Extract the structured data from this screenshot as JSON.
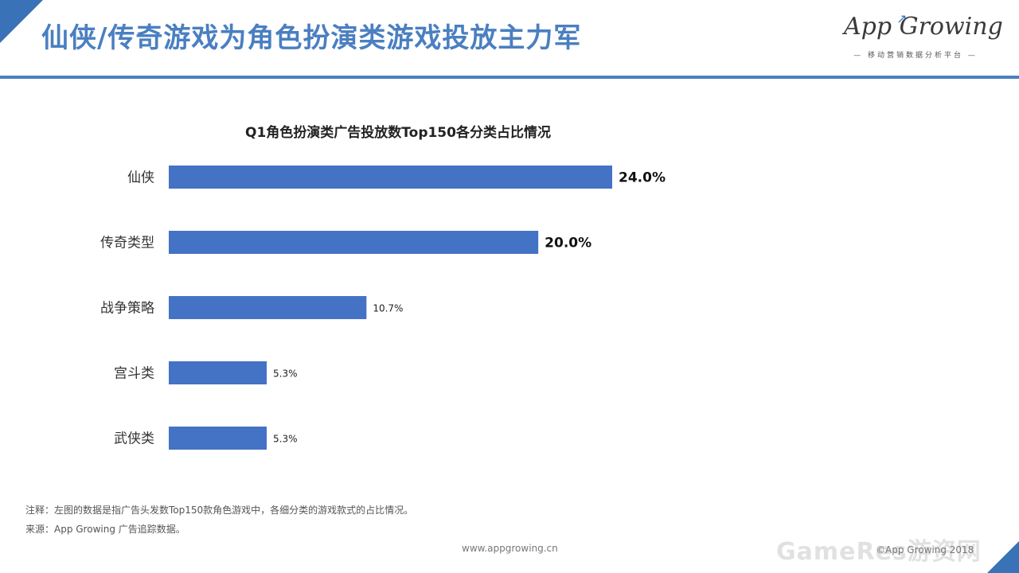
{
  "header": {
    "title": "仙侠/传奇游戏为角色扮演类游戏投放主力军",
    "logo_text": "App Growing",
    "logo_subtitle": "— 移动营销数据分析平台 —"
  },
  "chart_data": {
    "type": "bar",
    "orientation": "horizontal",
    "title": "Q1角色扮演类广告投放数Top150各分类占比情况",
    "categories": [
      "仙侠",
      "传奇类型",
      "战争策略",
      "宫斗类",
      "武侠类"
    ],
    "values": [
      24.0,
      20.0,
      10.7,
      5.3,
      5.3
    ],
    "value_labels": [
      "24.0%",
      "20.0%",
      "10.7%",
      "5.3%",
      "5.3%"
    ],
    "xlabel": "",
    "ylabel": "",
    "xlim": [
      0,
      24.0
    ],
    "grid": false,
    "legend": "none",
    "bar_color": "#4472c4"
  },
  "footer": {
    "note": "注释：左图的数据是指广告头发数Top150款角色游戏中，各细分类的游戏款式的占比情况。",
    "source": "来源：App  Growing  广告追踪数据。",
    "website": "www.appgrowing.cn",
    "copyright": "©App Growing 2018",
    "watermark": "GameRes游资网"
  }
}
